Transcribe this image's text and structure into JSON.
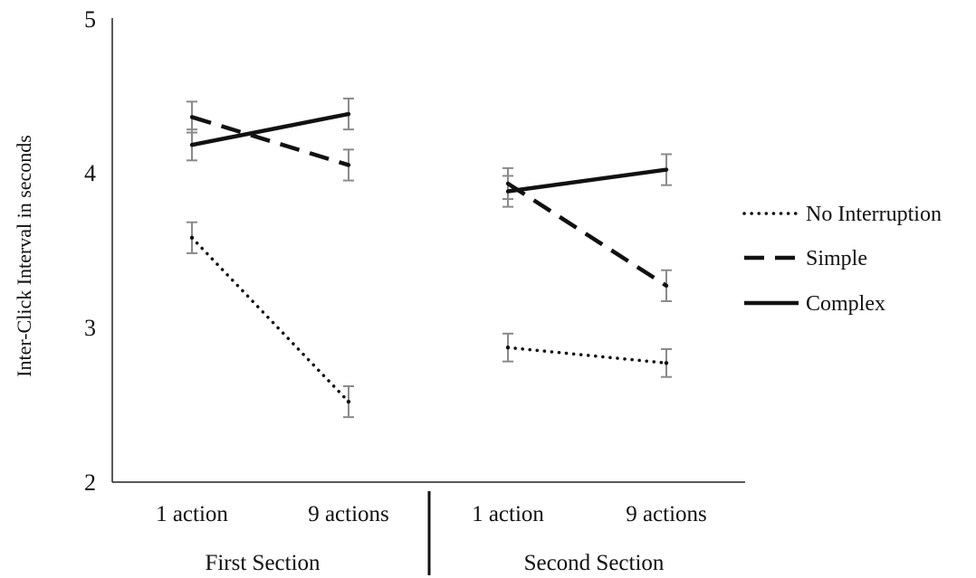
{
  "chart_data": {
    "type": "line",
    "ylabel": "Inter-Click Interval  in seconds",
    "xlabel": "",
    "ylim": [
      2,
      5
    ],
    "yticks": [
      "2",
      "3",
      "4",
      "5"
    ],
    "grid": false,
    "legend_position": "right",
    "groups": [
      {
        "label": "First Section",
        "categories": [
          "1 action",
          "9 actions"
        ]
      },
      {
        "label": "Second Section",
        "categories": [
          "1 action",
          "9 actions"
        ]
      }
    ],
    "series": [
      {
        "name": "No Interruption",
        "style": "dotted",
        "color": "#111111",
        "segments": [
          {
            "values": [
              3.58,
              2.52
            ],
            "errors": [
              0.1,
              0.1
            ]
          },
          {
            "values": [
              2.87,
              2.77
            ],
            "errors": [
              0.09,
              0.09
            ]
          }
        ]
      },
      {
        "name": "Simple",
        "style": "dashed",
        "color": "#111111",
        "segments": [
          {
            "values": [
              4.36,
              4.05
            ],
            "errors": [
              0.1,
              0.1
            ]
          },
          {
            "values": [
              3.93,
              3.27
            ],
            "errors": [
              0.1,
              0.1
            ]
          }
        ]
      },
      {
        "name": "Complex",
        "style": "solid",
        "color": "#111111",
        "segments": [
          {
            "values": [
              4.18,
              4.38
            ],
            "errors": [
              0.1,
              0.1
            ]
          },
          {
            "values": [
              3.88,
              4.02
            ],
            "errors": [
              0.1,
              0.1
            ]
          }
        ]
      }
    ]
  }
}
